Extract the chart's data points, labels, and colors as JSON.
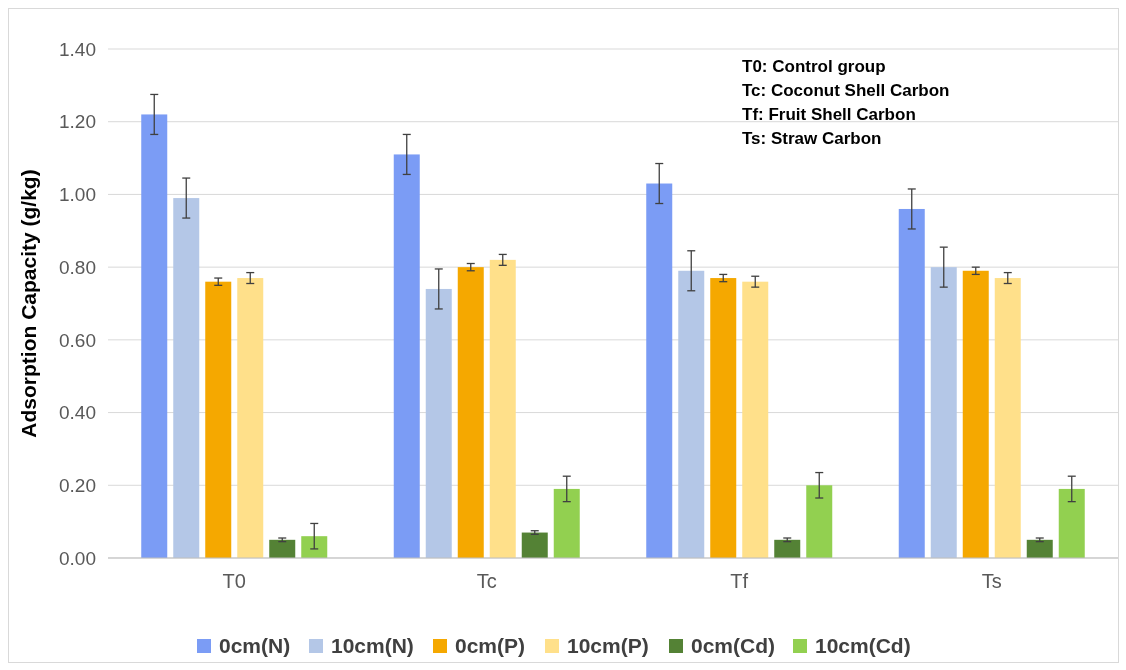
{
  "chart_data": {
    "type": "bar",
    "ylabel": "Adsorption Capacity (g/kg)",
    "categories": [
      "T0",
      "Tc",
      "Tf",
      "Ts"
    ],
    "ylim": [
      0,
      1.4
    ],
    "yticks": [
      {
        "value": 0,
        "label": "0.00"
      },
      {
        "value": 0.2,
        "label": "0.20"
      },
      {
        "value": 0.4,
        "label": "0.40"
      },
      {
        "value": 0.6,
        "label": "0.60"
      },
      {
        "value": 0.8,
        "label": "0.80"
      },
      {
        "value": 1,
        "label": "1.00"
      },
      {
        "value": 1.2,
        "label": "1.20"
      },
      {
        "value": 1.4,
        "label": "1.40"
      }
    ],
    "grid": "y",
    "legend": "bottom",
    "annotations": [
      "T0: Control group",
      "Tc: Coconut Shell Carbon",
      "Tf: Fruit Shell Carbon",
      "Ts: Straw Carbon"
    ],
    "series": [
      {
        "name": "0cm(N)",
        "color": "#7b9cf5",
        "values": [
          1.22,
          1.11,
          1.03,
          0.96
        ],
        "errors": [
          0.055,
          0.055,
          0.055,
          0.055
        ]
      },
      {
        "name": "10cm(N)",
        "color": "#b4c7e7",
        "values": [
          0.99,
          0.74,
          0.79,
          0.8
        ],
        "errors": [
          0.055,
          0.055,
          0.055,
          0.055
        ]
      },
      {
        "name": "0cm(P)",
        "color": "#f5a800",
        "values": [
          0.76,
          0.8,
          0.77,
          0.79
        ],
        "errors": [
          0.01,
          0.01,
          0.01,
          0.01
        ]
      },
      {
        "name": "10cm(P)",
        "color": "#ffe08a",
        "values": [
          0.77,
          0.82,
          0.76,
          0.77
        ],
        "errors": [
          0.015,
          0.015,
          0.015,
          0.015
        ]
      },
      {
        "name": "0cm(Cd)",
        "color": "#548235",
        "values": [
          0.05,
          0.07,
          0.05,
          0.05
        ],
        "errors": [
          0.005,
          0.005,
          0.005,
          0.005
        ]
      },
      {
        "name": "10cm(Cd)",
        "color": "#92d050",
        "values": [
          0.06,
          0.19,
          0.2,
          0.19
        ],
        "errors": [
          0.035,
          0.035,
          0.035,
          0.035
        ]
      }
    ]
  }
}
